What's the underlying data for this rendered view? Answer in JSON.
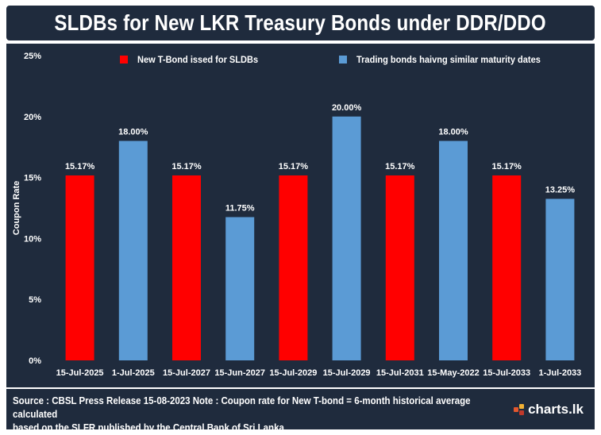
{
  "header": {
    "title": "SLDBs for New LKR Treasury Bonds under DDR/DDO"
  },
  "colors": {
    "panel": "#1f2b3d",
    "new_bond": "#ff0000",
    "trading_bond": "#5b9bd5",
    "text": "#ffffff"
  },
  "chart_data": {
    "type": "bar",
    "title": "",
    "xlabel": "",
    "ylabel": "Coupon Rate",
    "ylim": [
      0,
      25
    ],
    "yticks": [
      "0%",
      "5%",
      "10%",
      "15%",
      "20%",
      "25%"
    ],
    "grid": false,
    "legend_position": "top",
    "series": [
      {
        "name": "New T-Bond issed for SLDBs",
        "color": "#ff0000"
      },
      {
        "name": "Trading bonds haivng similar maturity dates",
        "color": "#5b9bd5"
      }
    ],
    "bars": [
      {
        "category": "15-Jul-2025",
        "value": 15.17,
        "label": "15.17%",
        "series": 0
      },
      {
        "category": "1-Jul-2025",
        "value": 18.0,
        "label": "18.00%",
        "series": 1
      },
      {
        "category": "15-Jul-2027",
        "value": 15.17,
        "label": "15.17%",
        "series": 0
      },
      {
        "category": "15-Jun-2027",
        "value": 11.75,
        "label": "11.75%",
        "series": 1
      },
      {
        "category": "15-Jul-2029",
        "value": 15.17,
        "label": "15.17%",
        "series": 0
      },
      {
        "category": "15-Jul-2029",
        "value": 20.0,
        "label": "20.00%",
        "series": 1
      },
      {
        "category": "15-Jul-2031",
        "value": 15.17,
        "label": "15.17%",
        "series": 0
      },
      {
        "category": "15-May-2022",
        "value": 18.0,
        "label": "18.00%",
        "series": 1
      },
      {
        "category": "15-Jul-2033",
        "value": 15.17,
        "label": "15.17%",
        "series": 0
      },
      {
        "category": "1-Jul-2033",
        "value": 13.25,
        "label": "13.25%",
        "series": 1
      }
    ]
  },
  "footer": {
    "line1": "Source : CBSL  Press Release 15-08-2023  Note : Coupon rate for New T-bond = 6-month historical average calculated",
    "line2": "based on the  SLFR published by the Central Bank of Sri Lanka",
    "logo_text": "charts.lk"
  }
}
